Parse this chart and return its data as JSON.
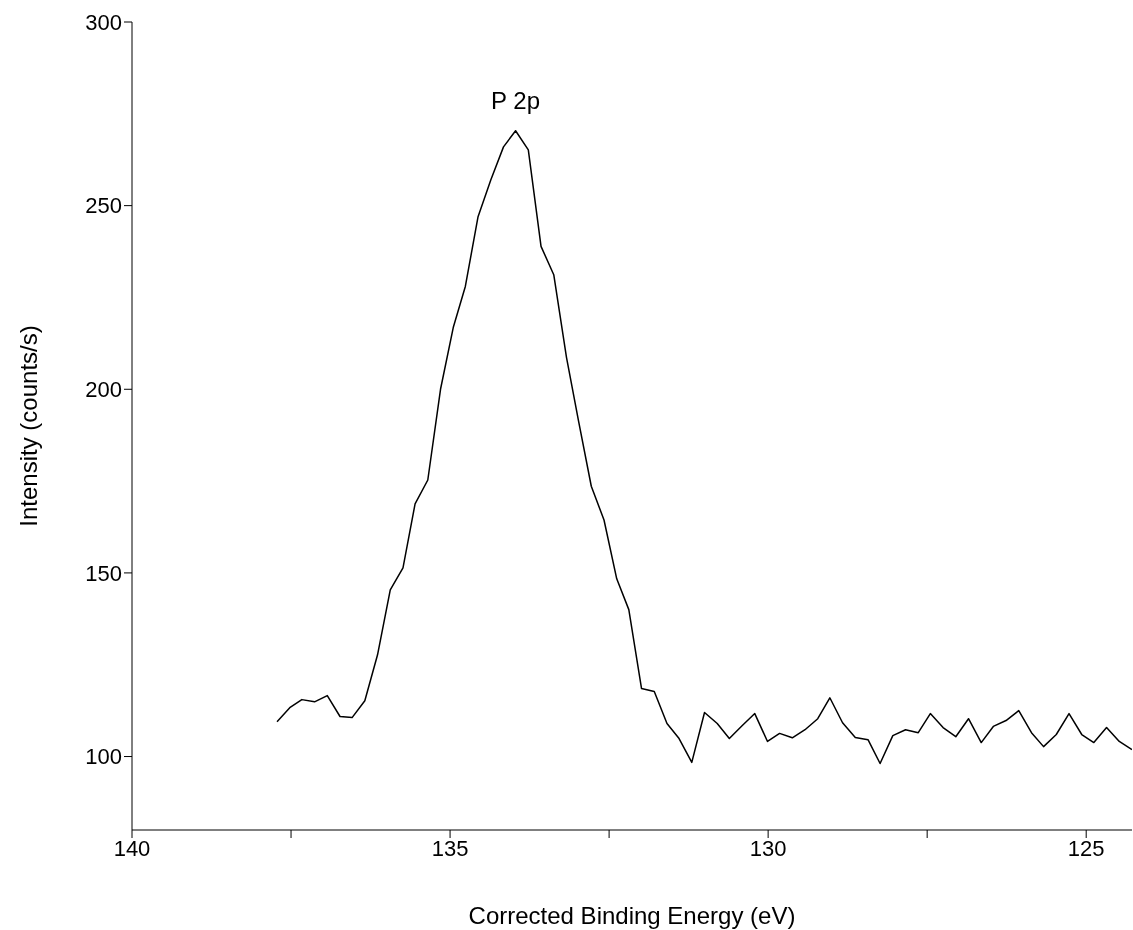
{
  "chart_data": {
    "type": "line",
    "xlabel": "Corrected Binding Energy (eV)",
    "ylabel": "Intensity (counts/s)",
    "annotations": [
      "P 2p"
    ],
    "x": [
      137.72,
      137.52,
      137.33,
      137.13,
      136.93,
      136.73,
      136.54,
      136.34,
      136.14,
      135.94,
      135.74,
      135.55,
      135.35,
      135.15,
      134.95,
      134.76,
      134.56,
      134.36,
      134.16,
      133.97,
      133.77,
      133.57,
      133.37,
      133.17,
      132.98,
      132.78,
      132.58,
      132.38,
      132.19,
      131.99,
      131.79,
      131.59,
      131.4,
      131.2,
      131.0,
      130.8,
      130.61,
      130.41,
      130.21,
      130.01,
      129.82,
      129.62,
      129.42,
      129.22,
      129.03,
      128.83,
      128.63,
      128.43,
      128.24,
      128.04,
      127.84,
      127.64,
      127.45,
      127.25,
      127.05,
      126.85,
      126.65,
      126.46,
      126.26,
      126.06,
      125.86,
      125.67,
      125.47,
      125.27,
      125.07,
      124.88,
      124.68,
      124.48,
      124.28
    ],
    "series": [
      {
        "color": "#000000",
        "values": [
          109.5,
          113.3,
          115.5,
          114.9,
          116.6,
          110.9,
          110.6,
          115.2,
          127.7,
          145.4,
          151.4,
          168.8,
          175.3,
          200,
          216.8,
          228,
          247,
          257,
          266,
          270.4,
          265.2,
          238.9,
          231.2,
          208.7,
          191.3,
          173.6,
          164.4,
          148.4,
          140,
          118.5,
          117.7,
          109,
          104.9,
          98.4,
          112,
          109,
          104.9,
          108.4,
          111.7,
          104.1,
          106.3,
          105.1,
          107.3,
          110.3,
          116,
          109.2,
          105.2,
          104.6,
          98.1,
          105.7,
          107.3,
          106.5,
          111.7,
          107.9,
          105.4,
          110.3,
          103.8,
          108.2,
          109.8,
          112.5,
          106.5,
          102.7,
          106,
          111.7,
          106,
          103.8,
          107.9,
          104.1,
          101.9
        ]
      }
    ],
    "xlim": [
      140,
      124.28
    ],
    "xticks": [
      140,
      {
        "value": 137.5,
        "label": null
      },
      135,
      {
        "value": 132.5,
        "label": null
      },
      130,
      {
        "value": 127.5,
        "label": null
      },
      125
    ],
    "ylim": [
      80,
      300
    ],
    "yticks": [
      100,
      150,
      200,
      250,
      300
    ],
    "marker": "none",
    "line_style": "solid"
  }
}
